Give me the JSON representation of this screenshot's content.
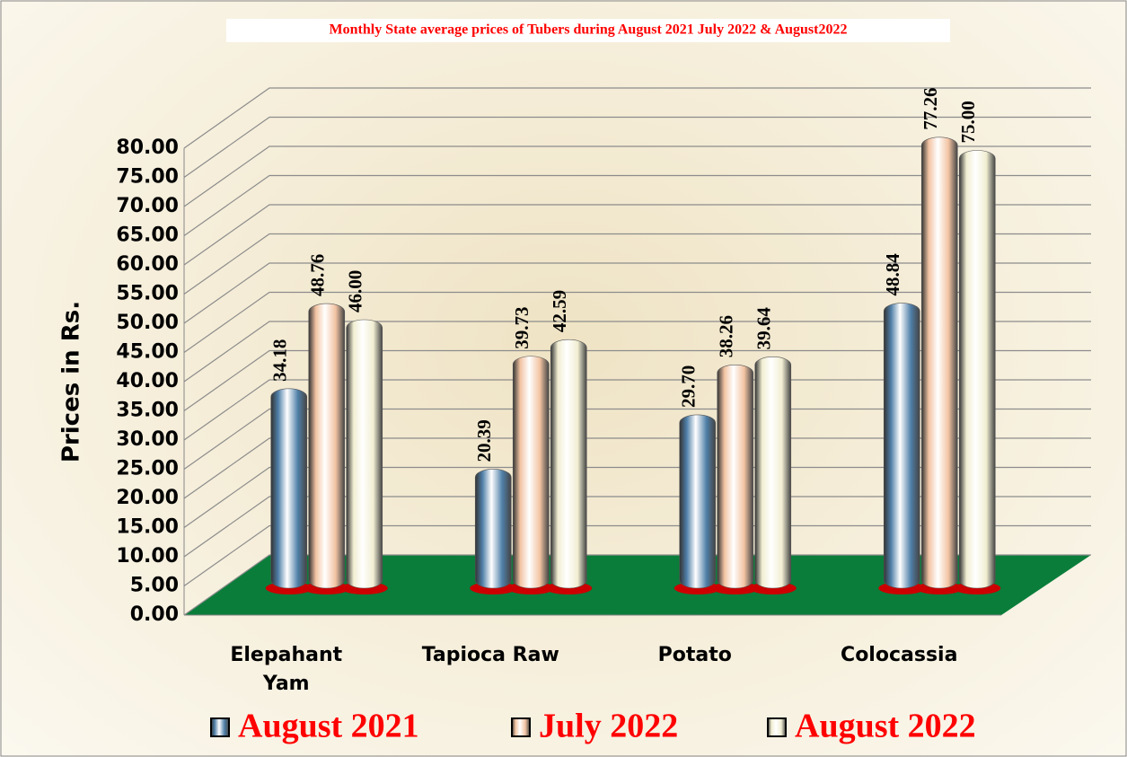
{
  "chart_data": {
    "type": "bar",
    "title": "Monthly State average prices of Tubers during  August 2021  July 2022  &  August2022",
    "title_color": "#ff0000",
    "y_label": "Prices in Rs.",
    "categories": [
      "Elepahant Yam",
      "Tapioca Raw",
      "Potato",
      "Colocassia"
    ],
    "series": [
      {
        "name": "August 2021",
        "color": "#4f7fa8",
        "values": [
          34.18,
          20.39,
          29.7,
          48.84
        ],
        "value_labels": [
          "34.18",
          "20.39",
          "29.70",
          "48.84"
        ]
      },
      {
        "name": "July 2022",
        "color": "#f2c3a2",
        "values": [
          48.76,
          39.73,
          38.26,
          77.26
        ],
        "value_labels": [
          "48.76",
          "39.73",
          "38.26",
          "77.26"
        ]
      },
      {
        "name": "August 2022",
        "color": "#f1eed2",
        "values": [
          46.0,
          42.59,
          39.64,
          75.0
        ],
        "value_labels": [
          "46.00",
          "42.59",
          "39.64",
          "75.00"
        ]
      }
    ],
    "ylim": [
      0,
      80
    ],
    "yticks": [
      {
        "value": 0,
        "label": "0.00"
      },
      {
        "value": 5,
        "label": "5.00"
      },
      {
        "value": 10,
        "label": "10.00"
      },
      {
        "value": 15,
        "label": "15.00"
      },
      {
        "value": 20,
        "label": "20.00"
      },
      {
        "value": 25,
        "label": "25.00"
      },
      {
        "value": 30,
        "label": "30.00"
      },
      {
        "value": 35,
        "label": "35.00"
      },
      {
        "value": 40,
        "label": "40.00"
      },
      {
        "value": 45,
        "label": "45.00"
      },
      {
        "value": 50,
        "label": "50.00"
      },
      {
        "value": 55,
        "label": "55.00"
      },
      {
        "value": 60,
        "label": "60.00"
      },
      {
        "value": 65,
        "label": "65.00"
      },
      {
        "value": 70,
        "label": "70.00"
      },
      {
        "value": 75,
        "label": "75.00"
      },
      {
        "value": 80,
        "label": "80.00"
      }
    ],
    "grid": true,
    "floor_color": "#0a7d3a",
    "legend_position": "bottom",
    "legend_text_color": "#ff0000"
  }
}
